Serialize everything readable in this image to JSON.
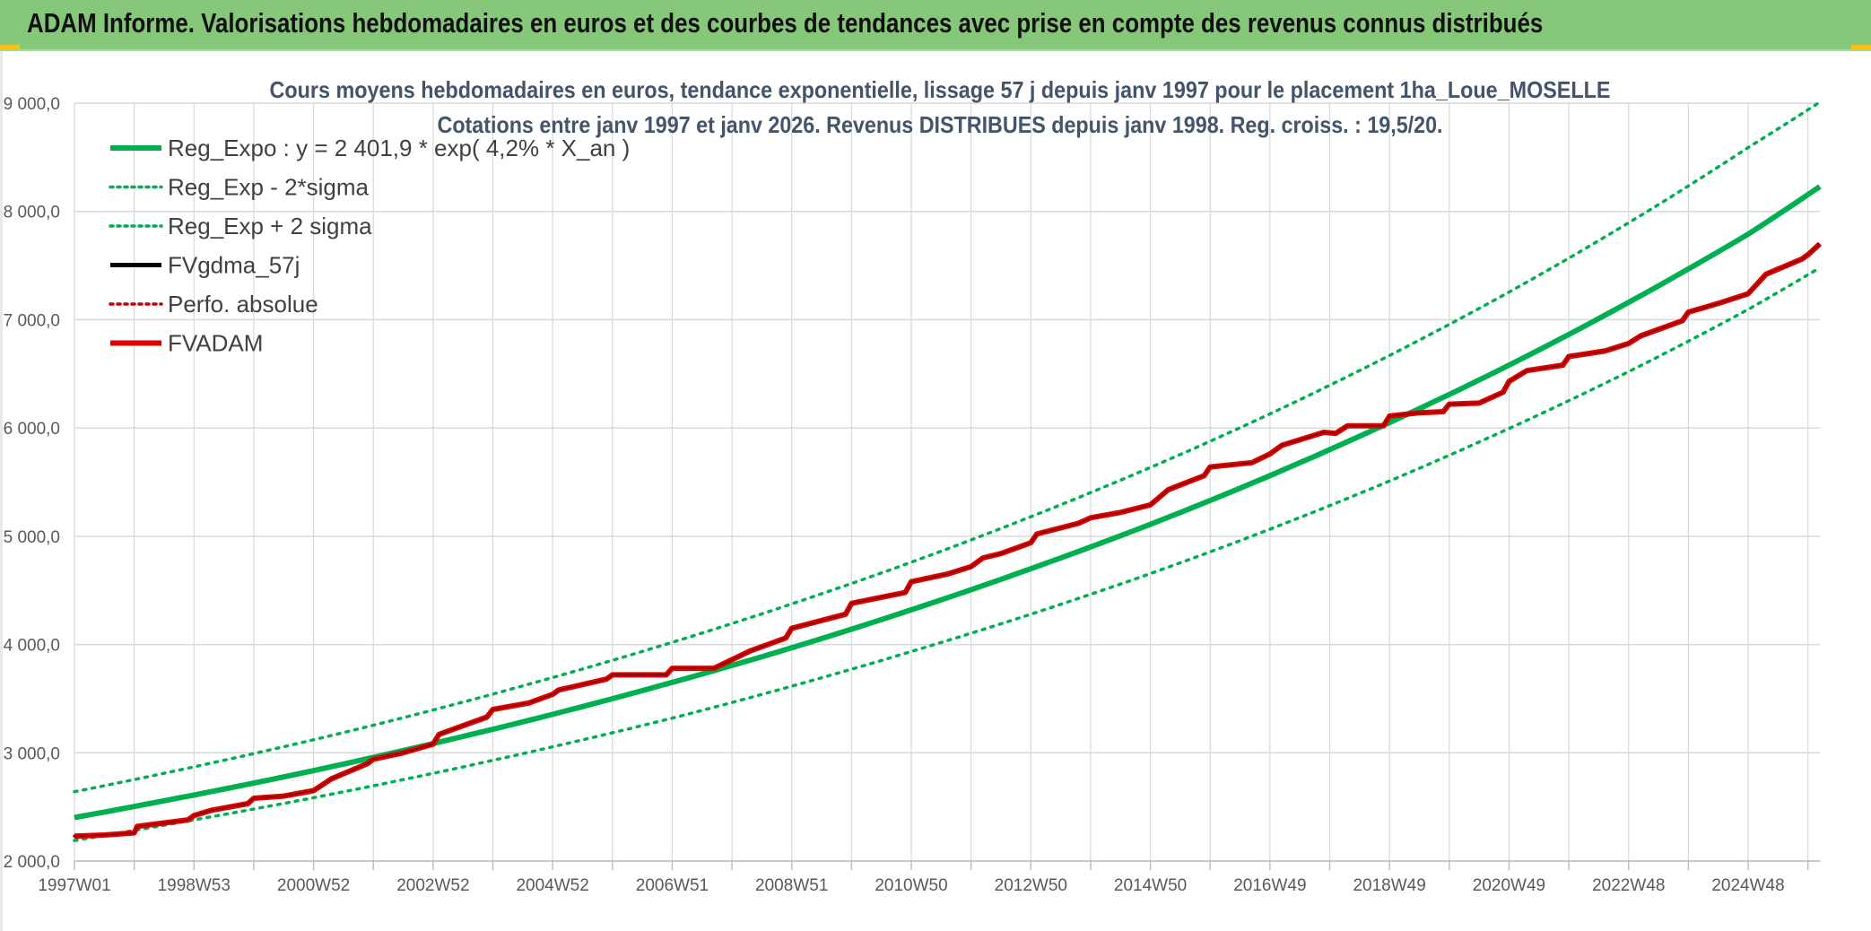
{
  "header": {
    "title": "ADAM Informe. Valorisations hebdomadaires en euros et des courbes de tendances avec prise en compte des revenus connus distribués"
  },
  "colors": {
    "header_bg": "#86c77a",
    "reg_expo": "#00b050",
    "sigma_lines": "#00b050",
    "fvgdma": "#000000",
    "perfo": "#c00000",
    "fvadam": "#e00000",
    "grid": "#d9d9d9"
  },
  "chart_data": {
    "type": "line",
    "title_line1": "Cours moyens hebdomadaires en euros, tendance exponentielle, lissage 57 j depuis janv 1997 pour le placement 1ha_Loue_MOSELLE",
    "title_line2": "Cotations entre janv 1997 et janv 2026. Revenus DISTRIBUES depuis janv 1998. Reg. croiss. : 19,5/20.",
    "xlabel": "",
    "ylabel": "",
    "ylim": [
      2000,
      9000
    ],
    "y_ticks": [
      "2 000,0",
      "3 000,0",
      "4 000,0",
      "5 000,0",
      "6 000,0",
      "7 000,0",
      "8 000,0",
      "9 000,0"
    ],
    "y_tick_values": [
      2000,
      3000,
      4000,
      5000,
      6000,
      7000,
      8000,
      9000
    ],
    "x_range_years": [
      1997.0,
      2026.2
    ],
    "x_ticks": [
      "1997W01",
      "1998W53",
      "2000W52",
      "2002W52",
      "2004W52",
      "2006W51",
      "2008W51",
      "2010W50",
      "2012W50",
      "2014W50",
      "2016W49",
      "2018W49",
      "2020W49",
      "2022W48",
      "2024W48"
    ],
    "x_tick_years": [
      1997.0,
      1999.0,
      2001.0,
      2003.0,
      2005.0,
      2007.0,
      2009.0,
      2011.0,
      2013.0,
      2015.0,
      2017.0,
      2019.0,
      2021.0,
      2023.0,
      2025.0
    ],
    "grid": true,
    "legend_placement": "top-left",
    "legend": [
      {
        "label": "Reg_Expo : y = 2 401,9 * exp( 4,2% *  X_an )",
        "style": "solid-thick",
        "color": "#00b050"
      },
      {
        "label": "Reg_Exp - 2*sigma",
        "style": "dotted",
        "color": "#00b050"
      },
      {
        "label": "Reg_Exp + 2 sigma",
        "style": "dotted",
        "color": "#00b050"
      },
      {
        "label": "FVgdma_57j",
        "style": "solid",
        "color": "#000000"
      },
      {
        "label": "Perfo. absolue",
        "style": "dotted",
        "color": "#c00000"
      },
      {
        "label": "FVADAM",
        "style": "solid-thick",
        "color": "#e00000"
      }
    ],
    "series": [
      {
        "name": "Reg_Expo : y = 2 401,9 * exp( 4,2% *  X_an )",
        "x": [
          1997.0,
          1999.0,
          2001.0,
          2003.0,
          2005.0,
          2007.0,
          2009.0,
          2011.0,
          2013.0,
          2015.0,
          2017.0,
          2019.0,
          2021.0,
          2023.0,
          2025.0,
          2026.2
        ],
        "y": [
          2402,
          2610,
          2835,
          3085,
          3355,
          3650,
          3970,
          4320,
          4700,
          5110,
          5560,
          6050,
          6580,
          7160,
          7790,
          8230
        ]
      },
      {
        "name": "Reg_Exp - 2*sigma",
        "x": [
          1997.0,
          1999.0,
          2001.0,
          2003.0,
          2005.0,
          2007.0,
          2009.0,
          2011.0,
          2013.0,
          2015.0,
          2017.0,
          2019.0,
          2021.0,
          2023.0,
          2025.0,
          2026.2
        ],
        "y": [
          2190,
          2380,
          2585,
          2810,
          3055,
          3320,
          3615,
          3935,
          4280,
          4655,
          5065,
          5510,
          5995,
          6520,
          7095,
          7480
        ]
      },
      {
        "name": "Reg_Exp + 2 sigma",
        "x": [
          1997.0,
          1999.0,
          2001.0,
          2003.0,
          2005.0,
          2007.0,
          2009.0,
          2011.0,
          2013.0,
          2015.0,
          2017.0,
          2019.0,
          2021.0,
          2023.0,
          2025.0,
          2026.2
        ],
        "y": [
          2640,
          2870,
          3120,
          3395,
          3695,
          4020,
          4375,
          4760,
          5180,
          5635,
          6130,
          6670,
          7255,
          7895,
          8590,
          9010
        ]
      },
      {
        "name": "FVgdma_57j",
        "x": [
          1997.0,
          1997.5,
          1998.0,
          1998.05,
          1998.9,
          1999.0,
          1999.3,
          1999.9,
          2000.0,
          2000.5,
          2001.0,
          2001.3,
          2001.9,
          2002.0,
          2002.5,
          2003.0,
          2003.1,
          2003.9,
          2004.0,
          2004.6,
          2005.0,
          2005.1,
          2005.9,
          2006.0,
          2006.9,
          2007.0,
          2007.7,
          2008.0,
          2008.3,
          2008.9,
          2009.0,
          2009.9,
          2010.0,
          2010.9,
          2011.0,
          2011.6,
          2012.0,
          2012.2,
          2012.5,
          2013.0,
          2013.1,
          2013.8,
          2014.0,
          2014.5,
          2015.0,
          2015.3,
          2015.9,
          2016.0,
          2016.7,
          2017.0,
          2017.2,
          2017.9,
          2018.1,
          2018.3,
          2018.9,
          2019.0,
          2019.5,
          2019.9,
          2020.0,
          2020.5,
          2020.9,
          2021.0,
          2021.3,
          2021.9,
          2022.0,
          2022.6,
          2023.0,
          2023.2,
          2023.9,
          2024.0,
          2024.5,
          2025.0,
          2025.3,
          2025.9,
          2026.0,
          2026.2
        ],
        "y": [
          2230,
          2240,
          2260,
          2320,
          2380,
          2420,
          2470,
          2530,
          2580,
          2600,
          2650,
          2760,
          2900,
          2940,
          3000,
          3080,
          3170,
          3330,
          3400,
          3460,
          3540,
          3580,
          3680,
          3720,
          3720,
          3780,
          3780,
          3860,
          3940,
          4060,
          4150,
          4280,
          4380,
          4480,
          4580,
          4650,
          4720,
          4800,
          4840,
          4940,
          5020,
          5120,
          5170,
          5220,
          5290,
          5430,
          5560,
          5640,
          5680,
          5760,
          5840,
          5960,
          5950,
          6020,
          6020,
          6110,
          6140,
          6150,
          6220,
          6230,
          6330,
          6430,
          6530,
          6580,
          6660,
          6710,
          6780,
          6850,
          6990,
          7070,
          7150,
          7240,
          7420,
          7560,
          7600,
          7700
        ]
      },
      {
        "name": "Perfo. absolue",
        "x": [
          1997.0,
          1997.5,
          1998.0,
          1998.05,
          1998.9,
          1999.0,
          1999.3,
          1999.9,
          2000.0,
          2000.5,
          2001.0,
          2001.3,
          2001.9,
          2002.0,
          2002.5,
          2003.0,
          2003.1,
          2003.9,
          2004.0,
          2004.6,
          2005.0,
          2005.1,
          2005.9,
          2006.0,
          2006.9,
          2007.0,
          2007.7,
          2008.0,
          2008.3,
          2008.9,
          2009.0,
          2009.9,
          2010.0,
          2010.9,
          2011.0,
          2011.6,
          2012.0,
          2012.2,
          2012.5,
          2013.0,
          2013.1,
          2013.8,
          2014.0,
          2014.5,
          2015.0,
          2015.3,
          2015.9,
          2016.0,
          2016.7,
          2017.0,
          2017.2,
          2017.9,
          2018.1,
          2018.3,
          2018.9,
          2019.0,
          2019.5,
          2019.9,
          2020.0,
          2020.5,
          2020.9,
          2021.0,
          2021.3,
          2021.9,
          2022.0,
          2022.6,
          2023.0,
          2023.2,
          2023.9,
          2024.0,
          2024.5,
          2025.0,
          2025.3,
          2025.9,
          2026.0,
          2026.2
        ],
        "y": [
          2230,
          2240,
          2260,
          2320,
          2380,
          2420,
          2470,
          2530,
          2580,
          2600,
          2650,
          2760,
          2900,
          2940,
          3000,
          3080,
          3170,
          3330,
          3400,
          3460,
          3540,
          3580,
          3680,
          3720,
          3720,
          3780,
          3780,
          3860,
          3940,
          4060,
          4150,
          4280,
          4380,
          4480,
          4580,
          4650,
          4720,
          4800,
          4840,
          4940,
          5020,
          5120,
          5170,
          5220,
          5290,
          5430,
          5560,
          5640,
          5680,
          5760,
          5840,
          5960,
          5950,
          6020,
          6020,
          6110,
          6140,
          6150,
          6220,
          6230,
          6330,
          6430,
          6530,
          6580,
          6660,
          6710,
          6780,
          6850,
          6990,
          7070,
          7150,
          7240,
          7420,
          7560,
          7600,
          7700
        ]
      },
      {
        "name": "FVADAM",
        "x": [
          1997.0,
          1997.5,
          1998.0,
          1998.05,
          1998.9,
          1999.0,
          1999.3,
          1999.9,
          2000.0,
          2000.5,
          2001.0,
          2001.3,
          2001.9,
          2002.0,
          2002.5,
          2003.0,
          2003.1,
          2003.9,
          2004.0,
          2004.6,
          2005.0,
          2005.1,
          2005.9,
          2006.0,
          2006.9,
          2007.0,
          2007.7,
          2008.0,
          2008.3,
          2008.9,
          2009.0,
          2009.9,
          2010.0,
          2010.9,
          2011.0,
          2011.6,
          2012.0,
          2012.2,
          2012.5,
          2013.0,
          2013.1,
          2013.8,
          2014.0,
          2014.5,
          2015.0,
          2015.3,
          2015.9,
          2016.0,
          2016.7,
          2017.0,
          2017.2,
          2017.9,
          2018.1,
          2018.3,
          2018.9,
          2019.0,
          2019.5,
          2019.9,
          2020.0,
          2020.5,
          2020.9,
          2021.0,
          2021.3,
          2021.9,
          2022.0,
          2022.6,
          2023.0,
          2023.2,
          2023.9,
          2024.0,
          2024.5,
          2025.0,
          2025.3,
          2025.9,
          2026.0,
          2026.2
        ],
        "y": [
          2230,
          2240,
          2260,
          2320,
          2380,
          2420,
          2470,
          2530,
          2580,
          2600,
          2650,
          2760,
          2900,
          2940,
          3000,
          3080,
          3170,
          3330,
          3400,
          3460,
          3540,
          3580,
          3680,
          3720,
          3720,
          3780,
          3780,
          3860,
          3940,
          4060,
          4150,
          4280,
          4380,
          4480,
          4580,
          4650,
          4720,
          4800,
          4840,
          4940,
          5020,
          5120,
          5170,
          5220,
          5290,
          5430,
          5560,
          5640,
          5680,
          5760,
          5840,
          5960,
          5950,
          6020,
          6020,
          6110,
          6140,
          6150,
          6220,
          6230,
          6330,
          6430,
          6530,
          6580,
          6660,
          6710,
          6780,
          6850,
          6990,
          7070,
          7150,
          7240,
          7420,
          7560,
          7600,
          7700
        ]
      }
    ]
  }
}
